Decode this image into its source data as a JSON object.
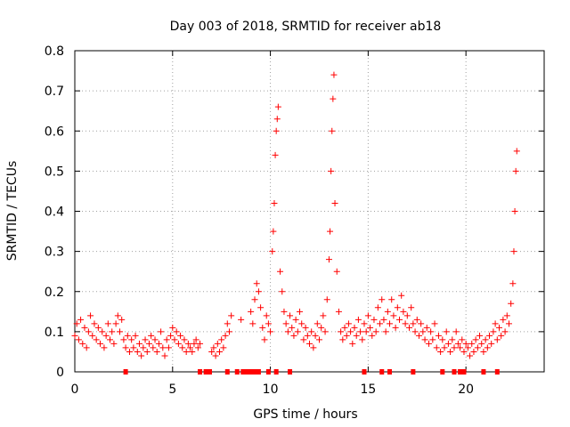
{
  "chart_data": {
    "type": "scatter",
    "title": "Day 003 of 2018, SRMTID for receiver ab18",
    "xlabel": "GPS time / hours",
    "ylabel": "SRMTID / TECUs",
    "xlim": [
      0,
      24
    ],
    "ylim": [
      0,
      0.8
    ],
    "x_ticks": [
      0,
      5,
      10,
      15,
      20
    ],
    "x_tick_labels": [
      "0",
      "5",
      "10",
      "15",
      "20"
    ],
    "y_ticks": [
      0,
      0.1,
      0.2,
      0.3,
      0.4,
      0.5,
      0.6,
      0.7,
      0.8
    ],
    "y_tick_labels": [
      "0",
      "0.1",
      "0.2",
      "0.3",
      "0.4",
      "0.5",
      "0.6",
      "0.7",
      "0.8"
    ],
    "grid": true,
    "marker": "+",
    "color": "#ff0000",
    "series": [
      {
        "name": "SRMTID",
        "points": [
          [
            0.0,
            0.09
          ],
          [
            0.1,
            0.12
          ],
          [
            0.2,
            0.08
          ],
          [
            0.3,
            0.13
          ],
          [
            0.4,
            0.07
          ],
          [
            0.5,
            0.11
          ],
          [
            0.6,
            0.06
          ],
          [
            0.7,
            0.1
          ],
          [
            0.8,
            0.14
          ],
          [
            0.9,
            0.09
          ],
          [
            1.0,
            0.12
          ],
          [
            1.1,
            0.08
          ],
          [
            1.2,
            0.11
          ],
          [
            1.3,
            0.07
          ],
          [
            1.4,
            0.1
          ],
          [
            1.5,
            0.06
          ],
          [
            1.6,
            0.09
          ],
          [
            1.7,
            0.12
          ],
          [
            1.8,
            0.08
          ],
          [
            1.9,
            0.1
          ],
          [
            2.0,
            0.07
          ],
          [
            2.1,
            0.12
          ],
          [
            2.2,
            0.14
          ],
          [
            2.3,
            0.1
          ],
          [
            2.4,
            0.13
          ],
          [
            2.5,
            0.08
          ],
          [
            2.6,
            0.06
          ],
          [
            2.7,
            0.09
          ],
          [
            2.8,
            0.05
          ],
          [
            2.9,
            0.08
          ],
          [
            3.0,
            0.06
          ],
          [
            3.1,
            0.09
          ],
          [
            3.2,
            0.05
          ],
          [
            3.3,
            0.07
          ],
          [
            3.4,
            0.04
          ],
          [
            3.5,
            0.06
          ],
          [
            3.6,
            0.08
          ],
          [
            3.7,
            0.05
          ],
          [
            3.8,
            0.07
          ],
          [
            3.9,
            0.09
          ],
          [
            4.0,
            0.06
          ],
          [
            4.1,
            0.08
          ],
          [
            4.2,
            0.05
          ],
          [
            4.3,
            0.07
          ],
          [
            4.4,
            0.1
          ],
          [
            4.5,
            0.06
          ],
          [
            4.6,
            0.04
          ],
          [
            4.7,
            0.08
          ],
          [
            4.8,
            0.06
          ],
          [
            4.9,
            0.09
          ],
          [
            5.0,
            0.11
          ],
          [
            5.1,
            0.08
          ],
          [
            5.2,
            0.1
          ],
          [
            5.3,
            0.07
          ],
          [
            5.4,
            0.09
          ],
          [
            5.5,
            0.06
          ],
          [
            5.6,
            0.08
          ],
          [
            5.7,
            0.05
          ],
          [
            5.8,
            0.07
          ],
          [
            5.9,
            0.06
          ],
          [
            6.0,
            0.05
          ],
          [
            6.1,
            0.07
          ],
          [
            6.2,
            0.08
          ],
          [
            6.3,
            0.06
          ],
          [
            6.4,
            0.07
          ],
          [
            7.0,
            0.05
          ],
          [
            7.1,
            0.06
          ],
          [
            7.2,
            0.04
          ],
          [
            7.3,
            0.07
          ],
          [
            7.4,
            0.05
          ],
          [
            7.5,
            0.08
          ],
          [
            7.6,
            0.06
          ],
          [
            7.7,
            0.09
          ],
          [
            7.8,
            0.12
          ],
          [
            7.9,
            0.1
          ],
          [
            8.0,
            0.14
          ],
          [
            8.5,
            0.13
          ],
          [
            9.0,
            0.15
          ],
          [
            9.1,
            0.12
          ],
          [
            9.2,
            0.18
          ],
          [
            9.3,
            0.22
          ],
          [
            9.4,
            0.2
          ],
          [
            9.5,
            0.16
          ],
          [
            9.6,
            0.11
          ],
          [
            9.7,
            0.08
          ],
          [
            9.8,
            0.14
          ],
          [
            9.9,
            0.12
          ],
          [
            10.0,
            0.1
          ],
          [
            10.1,
            0.3
          ],
          [
            10.15,
            0.35
          ],
          [
            10.2,
            0.42
          ],
          [
            10.25,
            0.54
          ],
          [
            10.3,
            0.6
          ],
          [
            10.35,
            0.63
          ],
          [
            10.4,
            0.66
          ],
          [
            10.5,
            0.25
          ],
          [
            10.6,
            0.2
          ],
          [
            10.7,
            0.15
          ],
          [
            10.8,
            0.12
          ],
          [
            10.9,
            0.1
          ],
          [
            11.0,
            0.14
          ],
          [
            11.1,
            0.11
          ],
          [
            11.2,
            0.09
          ],
          [
            11.3,
            0.13
          ],
          [
            11.4,
            0.1
          ],
          [
            11.5,
            0.15
          ],
          [
            11.6,
            0.12
          ],
          [
            11.7,
            0.08
          ],
          [
            11.8,
            0.11
          ],
          [
            11.9,
            0.09
          ],
          [
            12.0,
            0.07
          ],
          [
            12.1,
            0.1
          ],
          [
            12.2,
            0.06
          ],
          [
            12.3,
            0.09
          ],
          [
            12.4,
            0.12
          ],
          [
            12.5,
            0.08
          ],
          [
            12.6,
            0.11
          ],
          [
            12.7,
            0.14
          ],
          [
            12.8,
            0.1
          ],
          [
            12.9,
            0.18
          ],
          [
            13.0,
            0.28
          ],
          [
            13.05,
            0.35
          ],
          [
            13.1,
            0.5
          ],
          [
            13.15,
            0.6
          ],
          [
            13.2,
            0.68
          ],
          [
            13.25,
            0.74
          ],
          [
            13.3,
            0.42
          ],
          [
            13.4,
            0.25
          ],
          [
            13.5,
            0.15
          ],
          [
            13.6,
            0.1
          ],
          [
            13.7,
            0.08
          ],
          [
            13.8,
            0.11
          ],
          [
            13.9,
            0.09
          ],
          [
            14.0,
            0.12
          ],
          [
            14.1,
            0.1
          ],
          [
            14.2,
            0.07
          ],
          [
            14.3,
            0.11
          ],
          [
            14.4,
            0.09
          ],
          [
            14.5,
            0.13
          ],
          [
            14.6,
            0.1
          ],
          [
            14.7,
            0.08
          ],
          [
            14.8,
            0.12
          ],
          [
            14.9,
            0.1
          ],
          [
            15.0,
            0.14
          ],
          [
            15.1,
            0.11
          ],
          [
            15.2,
            0.09
          ],
          [
            15.3,
            0.13
          ],
          [
            15.4,
            0.1
          ],
          [
            15.5,
            0.16
          ],
          [
            15.6,
            0.12
          ],
          [
            15.7,
            0.18
          ],
          [
            15.8,
            0.13
          ],
          [
            15.9,
            0.1
          ],
          [
            16.0,
            0.15
          ],
          [
            16.1,
            0.12
          ],
          [
            16.2,
            0.18
          ],
          [
            16.3,
            0.14
          ],
          [
            16.4,
            0.11
          ],
          [
            16.5,
            0.16
          ],
          [
            16.6,
            0.13
          ],
          [
            16.7,
            0.19
          ],
          [
            16.8,
            0.15
          ],
          [
            16.9,
            0.12
          ],
          [
            17.0,
            0.14
          ],
          [
            17.1,
            0.11
          ],
          [
            17.2,
            0.16
          ],
          [
            17.3,
            0.12
          ],
          [
            17.4,
            0.1
          ],
          [
            17.5,
            0.13
          ],
          [
            17.6,
            0.09
          ],
          [
            17.7,
            0.12
          ],
          [
            17.8,
            0.1
          ],
          [
            17.9,
            0.08
          ],
          [
            18.0,
            0.11
          ],
          [
            18.1,
            0.07
          ],
          [
            18.2,
            0.1
          ],
          [
            18.3,
            0.08
          ],
          [
            18.4,
            0.12
          ],
          [
            18.5,
            0.06
          ],
          [
            18.6,
            0.09
          ],
          [
            18.7,
            0.05
          ],
          [
            18.8,
            0.08
          ],
          [
            18.9,
            0.06
          ],
          [
            19.0,
            0.1
          ],
          [
            19.1,
            0.07
          ],
          [
            19.2,
            0.05
          ],
          [
            19.3,
            0.08
          ],
          [
            19.4,
            0.06
          ],
          [
            19.5,
            0.1
          ],
          [
            19.6,
            0.07
          ],
          [
            19.7,
            0.06
          ],
          [
            19.8,
            0.08
          ],
          [
            19.9,
            0.05
          ],
          [
            20.0,
            0.07
          ],
          [
            20.1,
            0.06
          ],
          [
            20.2,
            0.04
          ],
          [
            20.3,
            0.07
          ],
          [
            20.4,
            0.05
          ],
          [
            20.5,
            0.08
          ],
          [
            20.6,
            0.06
          ],
          [
            20.7,
            0.09
          ],
          [
            20.8,
            0.07
          ],
          [
            20.9,
            0.05
          ],
          [
            21.0,
            0.08
          ],
          [
            21.1,
            0.06
          ],
          [
            21.2,
            0.09
          ],
          [
            21.3,
            0.07
          ],
          [
            21.4,
            0.1
          ],
          [
            21.5,
            0.12
          ],
          [
            21.6,
            0.08
          ],
          [
            21.7,
            0.11
          ],
          [
            21.8,
            0.09
          ],
          [
            21.9,
            0.13
          ],
          [
            22.0,
            0.1
          ],
          [
            22.1,
            0.14
          ],
          [
            22.2,
            0.12
          ],
          [
            22.3,
            0.17
          ],
          [
            22.4,
            0.22
          ],
          [
            22.45,
            0.3
          ],
          [
            22.5,
            0.4
          ],
          [
            22.55,
            0.5
          ],
          [
            22.6,
            0.55
          ]
        ]
      }
    ],
    "zero_markers": [
      2.6,
      6.4,
      6.7,
      6.9,
      7.8,
      8.3,
      8.6,
      8.8,
      9.0,
      9.2,
      9.4,
      9.9,
      10.3,
      11.0,
      14.8,
      15.7,
      16.1,
      17.3,
      18.8,
      19.4,
      19.7,
      19.9,
      20.9,
      21.6
    ]
  }
}
